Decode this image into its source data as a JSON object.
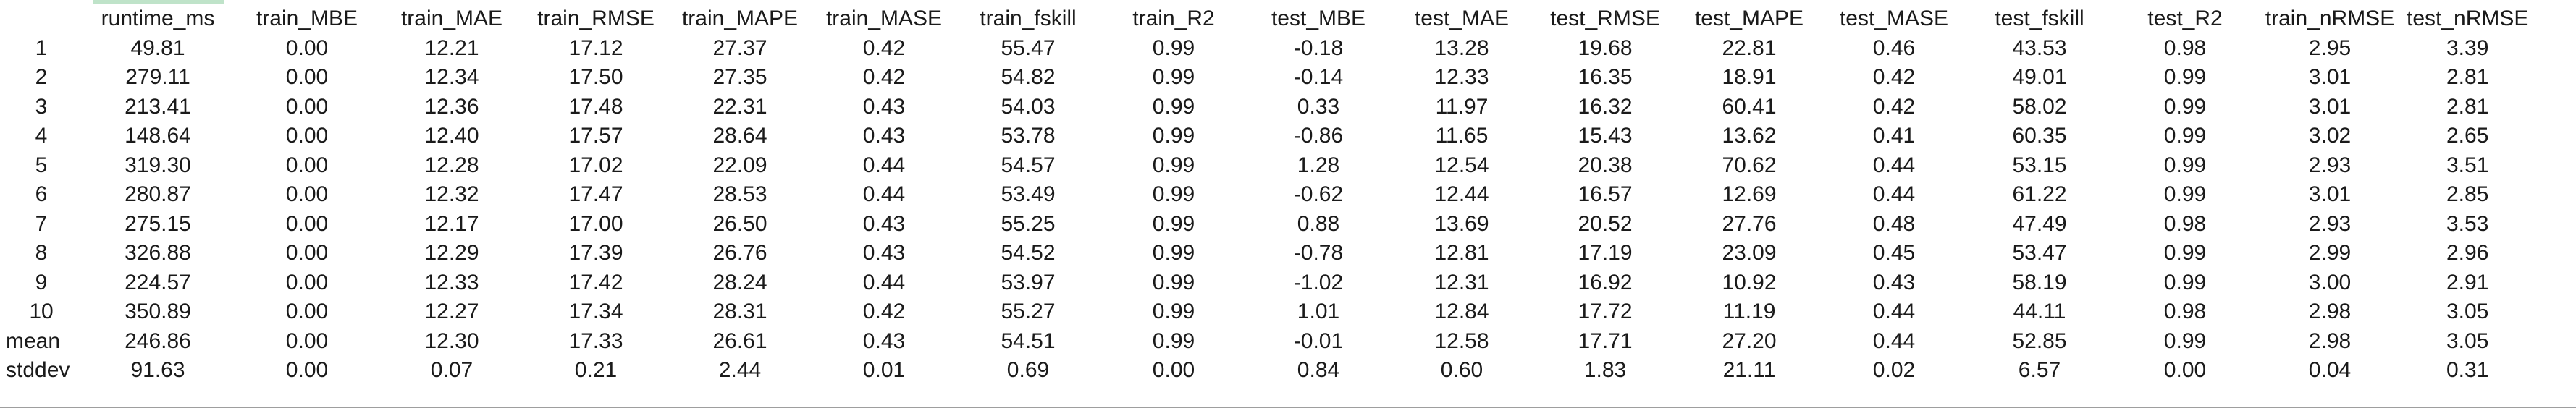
{
  "header": [
    "",
    "runtime_ms",
    "train_MBE",
    "train_MAE",
    "train_RMSE",
    "train_MAPE",
    "train_MASE",
    "train_fskill",
    "train_R2",
    "test_MBE",
    "test_MAE",
    "test_RMSE",
    "test_MAPE",
    "test_MASE",
    "test_fskill",
    "test_R2",
    "train_nRMSE",
    "test_nRMSE"
  ],
  "rows": [
    [
      "1",
      "49.81",
      "0.00",
      "12.21",
      "17.12",
      "27.37",
      "0.42",
      "55.47",
      "0.99",
      "-0.18",
      "13.28",
      "19.68",
      "22.81",
      "0.46",
      "43.53",
      "0.98",
      "2.95",
      "3.39"
    ],
    [
      "2",
      "279.11",
      "0.00",
      "12.34",
      "17.50",
      "27.35",
      "0.42",
      "54.82",
      "0.99",
      "-0.14",
      "12.33",
      "16.35",
      "18.91",
      "0.42",
      "49.01",
      "0.99",
      "3.01",
      "2.81"
    ],
    [
      "3",
      "213.41",
      "0.00",
      "12.36",
      "17.48",
      "22.31",
      "0.43",
      "54.03",
      "0.99",
      "0.33",
      "11.97",
      "16.32",
      "60.41",
      "0.42",
      "58.02",
      "0.99",
      "3.01",
      "2.81"
    ],
    [
      "4",
      "148.64",
      "0.00",
      "12.40",
      "17.57",
      "28.64",
      "0.43",
      "53.78",
      "0.99",
      "-0.86",
      "11.65",
      "15.43",
      "13.62",
      "0.41",
      "60.35",
      "0.99",
      "3.02",
      "2.65"
    ],
    [
      "5",
      "319.30",
      "0.00",
      "12.28",
      "17.02",
      "22.09",
      "0.44",
      "54.57",
      "0.99",
      "1.28",
      "12.54",
      "20.38",
      "70.62",
      "0.44",
      "53.15",
      "0.99",
      "2.93",
      "3.51"
    ],
    [
      "6",
      "280.87",
      "0.00",
      "12.32",
      "17.47",
      "28.53",
      "0.44",
      "53.49",
      "0.99",
      "-0.62",
      "12.44",
      "16.57",
      "12.69",
      "0.44",
      "61.22",
      "0.99",
      "3.01",
      "2.85"
    ],
    [
      "7",
      "275.15",
      "0.00",
      "12.17",
      "17.00",
      "26.50",
      "0.43",
      "55.25",
      "0.99",
      "0.88",
      "13.69",
      "20.52",
      "27.76",
      "0.48",
      "47.49",
      "0.98",
      "2.93",
      "3.53"
    ],
    [
      "8",
      "326.88",
      "0.00",
      "12.29",
      "17.39",
      "26.76",
      "0.43",
      "54.52",
      "0.99",
      "-0.78",
      "12.81",
      "17.19",
      "23.09",
      "0.45",
      "53.47",
      "0.99",
      "2.99",
      "2.96"
    ],
    [
      "9",
      "224.57",
      "0.00",
      "12.33",
      "17.42",
      "28.24",
      "0.44",
      "53.97",
      "0.99",
      "-1.02",
      "12.31",
      "16.92",
      "10.92",
      "0.43",
      "58.19",
      "0.99",
      "3.00",
      "2.91"
    ],
    [
      "10",
      "350.89",
      "0.00",
      "12.27",
      "17.34",
      "28.31",
      "0.42",
      "55.27",
      "0.99",
      "1.01",
      "12.84",
      "17.72",
      "11.19",
      "0.44",
      "44.11",
      "0.98",
      "2.98",
      "3.05"
    ]
  ],
  "summary": [
    [
      "mean",
      "246.86",
      "0.00",
      "12.30",
      "17.33",
      "26.61",
      "0.43",
      "54.51",
      "0.99",
      "-0.01",
      "12.58",
      "17.71",
      "27.20",
      "0.44",
      "52.85",
      "0.99",
      "2.98",
      "3.05"
    ],
    [
      "stddev",
      "91.63",
      "0.00",
      "0.07",
      "0.21",
      "2.44",
      "0.01",
      "0.69",
      "0.00",
      "0.84",
      "0.60",
      "1.83",
      "21.11",
      "0.02",
      "6.57",
      "0.00",
      "0.04",
      "0.31"
    ]
  ]
}
